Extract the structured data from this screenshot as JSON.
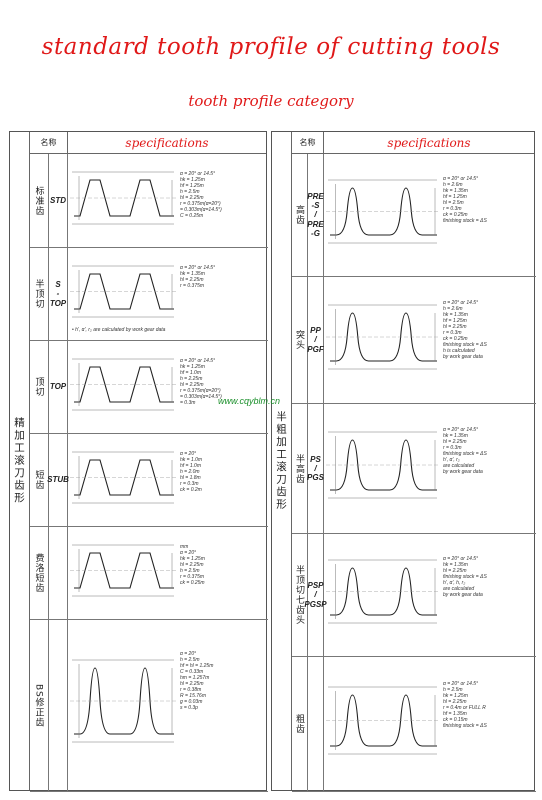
{
  "title": "standard tooth profile of cutting tools",
  "subtitle": "tooth profile category",
  "watermark": "www.cqyblm.cn",
  "left": {
    "group_label": "精加工滚刀齿形",
    "header": {
      "name": "名称",
      "spec": "specifications"
    },
    "rows": [
      {
        "name": "标准齿",
        "code": [
          "STD"
        ],
        "params": [
          "α = 20° or 14.5°",
          "hk = 1.25m",
          "hf = 1.25m",
          "h = 2.5m",
          "hl = 2.25m",
          "r = 0.375m(α=20°)",
          "= 0.303m(α=14.5°)",
          "C = 0.25m"
        ]
      },
      {
        "name": "半顶切",
        "code": [
          "S",
          "-",
          "TOP"
        ],
        "params": [
          "α = 20° or 14.5°",
          "hk = 1.35m",
          "hl = 2.25m",
          "r = 0.375m"
        ],
        "note": "• h', α', r₂ are calculated by work gear data"
      },
      {
        "name": "顶切",
        "code": [
          "TOP"
        ],
        "params": [
          "α = 20° or 14.5°",
          "hk = 1.25m",
          "hf = 1.0m",
          "h = 2.25m",
          "hl = 2.25m",
          "r = 0.375m(α=20°)",
          "= 0.303m(α=14.5°)",
          "= 0.3m"
        ]
      },
      {
        "name": "短齿",
        "code": [
          "STUB"
        ],
        "params": [
          "α = 20°",
          "hk = 1.0m",
          "hf = 1.0m",
          "h = 2.0m",
          "hl = 1.8m",
          "r = 0.3m",
          "ck = 0.2m"
        ]
      },
      {
        "name": "费洛短齿",
        "code": [],
        "params": [
          "mm",
          "α = 20°",
          "hk = 1.25m",
          "hl = 2.25m",
          "h = 2.5m",
          "r = 0.375m",
          "ck = 0.25m"
        ]
      },
      {
        "name": "BS修正齿",
        "code": [],
        "params": [
          "α = 20°",
          "h = 2.5m",
          "hf = hl = 1.25m",
          "C = 0.33m",
          "hm = 1.257m",
          "hl = 2.25m",
          "r = 0.38m",
          "R = 15.76m",
          "g = 0.03m",
          "s = 0.3p"
        ]
      }
    ]
  },
  "right": {
    "group_label": "半粗加工滚刀齿形",
    "header": {
      "name": "名称",
      "spec": "specifications"
    },
    "rows": [
      {
        "name": "高齿",
        "code": [
          "PRE",
          "-S",
          "/",
          "PRE",
          "-G"
        ],
        "params": [
          "α = 20° or 14.5°",
          "h = 2.6m",
          "hk = 1.35m",
          "hf = 1.25m",
          "hl = 2.5m",
          "r = 0.3m",
          "ck = 0.25m",
          "finishing stock = ΔS"
        ]
      },
      {
        "name": "突头",
        "code": [
          "PP",
          "/",
          "PGF"
        ],
        "params": [
          "α = 20° or 14.5°",
          "h = 2.6m",
          "hk = 1.35m",
          "hf = 1.25m",
          "hl = 2.25m",
          "r = 0.3m",
          "ck = 0.25m",
          "finishing stock = ΔS",
          "h is calculated",
          "by work gear data"
        ]
      },
      {
        "name": "半高齿",
        "code": [
          "PS",
          "/",
          "PGS"
        ],
        "params": [
          "α = 20° or 14.5°",
          "hk = 1.35m",
          "hl = 2.25m",
          "r = 0.3m",
          "finishing stock = ΔS",
          "h', α', r₂",
          "are calculated",
          "by work gear data"
        ]
      },
      {
        "name": "半顶切七齿头",
        "code": [
          "PSP",
          "/",
          "PGSP"
        ],
        "params": [
          "α = 20° or 14.5°",
          "hk = 1.35m",
          "hl = 2.25m",
          "finishing stock = ΔS",
          "h', α', h, r₂",
          "are calculated",
          "by work gear data"
        ]
      },
      {
        "name": "粗齿",
        "code": [],
        "params": [
          "α = 20° or 14.5°",
          "h = 2.5m",
          "hk = 1.25m",
          "hl = 2.25m",
          "r = 0.4m or FULL R",
          "hf = 1.35m",
          "ck = 0.15m",
          "finishing stock = ΔS"
        ]
      }
    ]
  }
}
